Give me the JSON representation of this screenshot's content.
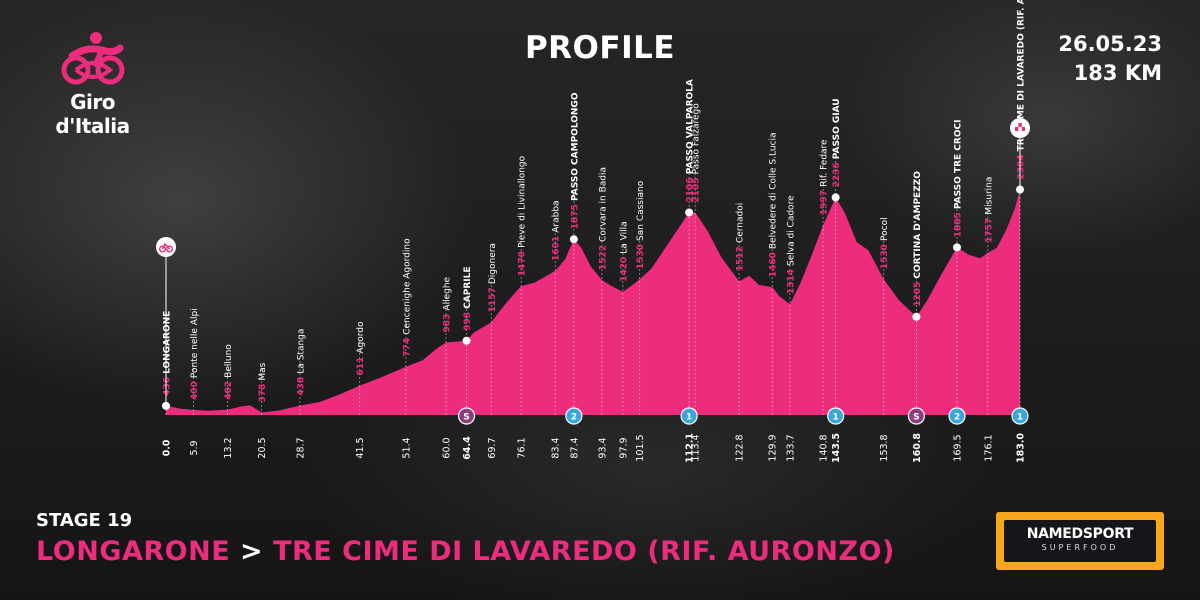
{
  "brand": {
    "logo_text": "Giro d'Italia"
  },
  "header": {
    "title": "PROFILE",
    "date": "26.05.23",
    "distance": "183 KM"
  },
  "footer": {
    "stage": "STAGE 19",
    "start": "LONGARONE",
    "separator": ">",
    "finish": "TRE CIME DI LAVAREDO (RIF. AURONZO)"
  },
  "sponsor": {
    "name": "NAMEDSPORT",
    "sub": "SUPERFOOD"
  },
  "colors": {
    "profile": "#ee2c7e",
    "alt_number": "#ee2c7e",
    "gpm": "#3aa6dc",
    "sprint": "#8c3f80"
  },
  "chart_data": {
    "type": "area",
    "title": "PROFILE",
    "x_unit": "km",
    "xlim": [
      0,
      183
    ],
    "km_ticks": [
      "0.0",
      "5.9",
      "13.2",
      "20.5",
      "28.7",
      "41.5",
      "51.4",
      "60.0",
      "64.4",
      "69.7",
      "76.1",
      "83.4",
      "87.4",
      "93.4",
      "97.9",
      "101.5",
      "112.1",
      "113.4",
      "122.8",
      "129.9",
      "133.7",
      "140.8",
      "143.5",
      "153.8",
      "160.8",
      "169.5",
      "176.1",
      "183.0"
    ],
    "bold_ticks": [
      "0.0",
      "64.4",
      "112.1",
      "143.5",
      "160.8",
      "183.0"
    ],
    "waypoints": [
      {
        "km": 0.0,
        "alt": "436",
        "name": "LONGARONE",
        "bold": true
      },
      {
        "km": 5.9,
        "alt": "400",
        "name": "Ponte nelle Alpi"
      },
      {
        "km": 13.2,
        "alt": "402",
        "name": "Belluno"
      },
      {
        "km": 20.5,
        "alt": "378",
        "name": "Mas"
      },
      {
        "km": 28.7,
        "alt": "438",
        "name": "La Stanga"
      },
      {
        "km": 41.5,
        "alt": "611",
        "name": "Agordo"
      },
      {
        "km": 51.4,
        "alt": "774",
        "name": "Cencenighe Agordino"
      },
      {
        "km": 60.0,
        "alt": "983",
        "name": "Alleghe"
      },
      {
        "km": 64.4,
        "alt": "998",
        "name": "CAPRILE",
        "bold": true
      },
      {
        "km": 69.7,
        "alt": "1157",
        "name": "Digonera"
      },
      {
        "km": 76.1,
        "alt": "1470",
        "name": "Pieve di Livinallongo"
      },
      {
        "km": 83.4,
        "alt": "1601",
        "name": "Arabba"
      },
      {
        "km": 87.4,
        "alt": "1875",
        "name": "PASSO CAMPOLONGO",
        "bold": true
      },
      {
        "km": 93.4,
        "alt": "1522",
        "name": "Corvara in Badia"
      },
      {
        "km": 97.9,
        "alt": "1420",
        "name": "La Villa"
      },
      {
        "km": 101.5,
        "alt": "1530",
        "name": "San Cassiano"
      },
      {
        "km": 112.1,
        "alt": "2106",
        "name": "PASSO VALPAROLA",
        "bold": true
      },
      {
        "km": 113.4,
        "alt": "2105",
        "name": "Passo Falzarego"
      },
      {
        "km": 122.8,
        "alt": "1512",
        "name": "Cernadoi"
      },
      {
        "km": 129.9,
        "alt": "1460",
        "name": "Belvedere di Colle S.Lucia"
      },
      {
        "km": 133.7,
        "alt": "1314",
        "name": "Selva di Cadore"
      },
      {
        "km": 140.8,
        "alt": "1997",
        "name": "Rif. Fedare"
      },
      {
        "km": 143.5,
        "alt": "2236",
        "name": "PASSO GIAU",
        "bold": true
      },
      {
        "km": 153.8,
        "alt": "1530",
        "name": "Pocol"
      },
      {
        "km": 160.8,
        "alt": "1205",
        "name": "CORTINA D'AMPEZZO",
        "bold": true
      },
      {
        "km": 169.5,
        "alt": "1805",
        "name": "PASSO TRE CROCI",
        "bold": true
      },
      {
        "km": 176.1,
        "alt": "1757",
        "name": "Misurina"
      },
      {
        "km": 183.0,
        "alt": "2304",
        "name": "TRE CIME DI LAVAREDO (RIF. AURONZO)",
        "bold": true
      }
    ],
    "markers": [
      {
        "km": 64.4,
        "kind": "sprint",
        "label": "S"
      },
      {
        "km": 87.4,
        "kind": "gpm",
        "label": "2"
      },
      {
        "km": 112.1,
        "kind": "gpm",
        "label": "1"
      },
      {
        "km": 143.5,
        "kind": "gpm",
        "label": "1"
      },
      {
        "km": 160.8,
        "kind": "sprint",
        "label": "S"
      },
      {
        "km": 169.5,
        "kind": "gpm",
        "label": "2"
      },
      {
        "km": 183.0,
        "kind": "gpm",
        "label": "1"
      }
    ],
    "profile": [
      [
        0,
        436
      ],
      [
        3,
        412
      ],
      [
        5.9,
        400
      ],
      [
        9,
        395
      ],
      [
        13.2,
        402
      ],
      [
        16,
        430
      ],
      [
        18,
        440
      ],
      [
        20.5,
        378
      ],
      [
        24,
        395
      ],
      [
        28.7,
        438
      ],
      [
        33,
        470
      ],
      [
        37,
        530
      ],
      [
        41.5,
        611
      ],
      [
        46,
        680
      ],
      [
        51.4,
        774
      ],
      [
        55,
        830
      ],
      [
        58,
        930
      ],
      [
        60,
        983
      ],
      [
        64.4,
        998
      ],
      [
        66,
        1070
      ],
      [
        69.7,
        1157
      ],
      [
        72,
        1280
      ],
      [
        74.5,
        1400
      ],
      [
        76.1,
        1470
      ],
      [
        79,
        1500
      ],
      [
        83.4,
        1601
      ],
      [
        85.5,
        1700
      ],
      [
        87.4,
        1875
      ],
      [
        89,
        1800
      ],
      [
        91,
        1640
      ],
      [
        93.4,
        1522
      ],
      [
        95.5,
        1470
      ],
      [
        97.9,
        1420
      ],
      [
        100,
        1480
      ],
      [
        101.5,
        1530
      ],
      [
        104,
        1620
      ],
      [
        107,
        1800
      ],
      [
        110,
        1980
      ],
      [
        112.1,
        2106
      ],
      [
        113.4,
        2105
      ],
      [
        116,
        1950
      ],
      [
        119,
        1720
      ],
      [
        122.8,
        1512
      ],
      [
        125,
        1560
      ],
      [
        127,
        1480
      ],
      [
        129.9,
        1460
      ],
      [
        131.5,
        1380
      ],
      [
        133.7,
        1314
      ],
      [
        136,
        1500
      ],
      [
        138.5,
        1750
      ],
      [
        140.8,
        1997
      ],
      [
        143.5,
        2236
      ],
      [
        145.5,
        2100
      ],
      [
        148,
        1850
      ],
      [
        150.5,
        1780
      ],
      [
        153.8,
        1530
      ],
      [
        157,
        1350
      ],
      [
        160.8,
        1205
      ],
      [
        163,
        1340
      ],
      [
        166,
        1560
      ],
      [
        169.5,
        1805
      ],
      [
        172,
        1740
      ],
      [
        174.5,
        1710
      ],
      [
        176.1,
        1757
      ],
      [
        178,
        1800
      ],
      [
        180,
        1950
      ],
      [
        182,
        2150
      ],
      [
        183,
        2304
      ]
    ]
  }
}
